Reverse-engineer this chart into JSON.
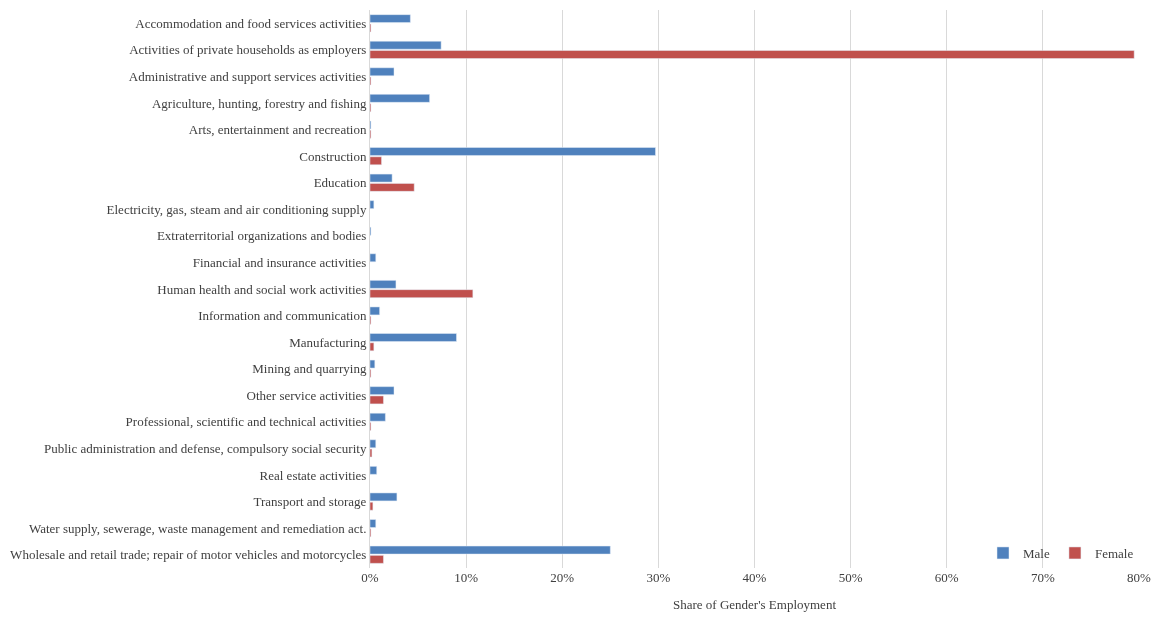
{
  "chart_data": {
    "type": "bar",
    "orientation": "horizontal",
    "xlabel": "Share of Gender's Employment",
    "categories": [
      "Accommodation and food services activities",
      "Activities of private households as employers",
      "Administrative and support services activities",
      "Agriculture, hunting, forestry and fishing",
      "Arts, entertainment and recreation",
      "Construction",
      "Education",
      "Electricity, gas, steam and air conditioning supply",
      "Extraterritorial organizations and bodies",
      "Financial and insurance activities",
      "Human health and social work activities",
      "Information and communication",
      "Manufacturing",
      "Mining and quarrying",
      "Other service activities",
      "Professional, scientific and technical activities",
      "Public administration and defense, compulsory social security",
      "Real estate activities",
      "Transport and storage",
      "Water supply, sewerage, waste management and remediation act.",
      "Wholesale and retail trade; repair of motor vehicles and motorcycles"
    ],
    "series": [
      {
        "name": "Male",
        "color": "#4f81bd",
        "values": [
          4.2,
          7.4,
          2.5,
          6.2,
          0.1,
          29.7,
          2.3,
          0.4,
          0.1,
          0.6,
          2.7,
          1.0,
          9.0,
          0.5,
          2.5,
          1.6,
          0.6,
          0.7,
          2.8,
          0.6,
          25.0
        ]
      },
      {
        "name": "Female",
        "color": "#c0504d",
        "values": [
          0.1,
          79.5,
          0.1,
          0.1,
          0.1,
          1.2,
          4.6,
          null,
          null,
          null,
          10.7,
          0.1,
          0.4,
          0.1,
          1.4,
          0.1,
          0.2,
          null,
          0.3,
          0.1,
          1.4
        ]
      }
    ],
    "xlim": [
      0,
      80
    ],
    "xticks": [
      {
        "value": 0,
        "label": "0%"
      },
      {
        "value": 10,
        "label": "10%"
      },
      {
        "value": 20,
        "label": "20%"
      },
      {
        "value": 30,
        "label": "30%"
      },
      {
        "value": 40,
        "label": "40%"
      },
      {
        "value": 50,
        "label": "50%"
      },
      {
        "value": 60,
        "label": "60%"
      },
      {
        "value": 70,
        "label": "70%"
      },
      {
        "value": 80,
        "label": "80%"
      }
    ],
    "grid": "x",
    "legend": "bottom right"
  }
}
